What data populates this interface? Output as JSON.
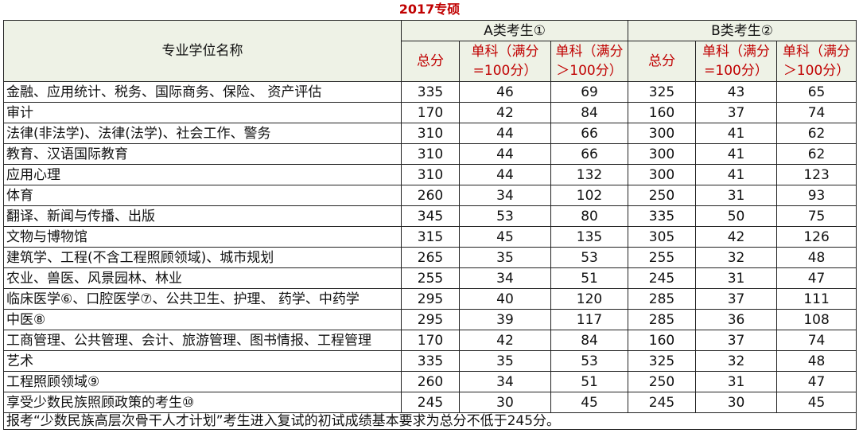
{
  "title": "2017专硕",
  "table": {
    "header": {
      "name": "专业学位名称",
      "group_a": "A类考生①",
      "group_b": "B类考生②",
      "sub": [
        "总分",
        "单科（满分=100分）",
        "单科（满分＞100分）",
        "总分",
        "单科（满分=100分）",
        "单科（满分＞100分）"
      ]
    },
    "rows": [
      [
        "金融、应用统计、税务、国际商务、保险、 资产评估",
        335,
        46,
        69,
        325,
        43,
        65
      ],
      [
        "审计",
        170,
        42,
        84,
        160,
        37,
        74
      ],
      [
        "法律(非法学)、法律(法学)、社会工作、警务",
        310,
        44,
        66,
        300,
        41,
        62
      ],
      [
        "教育、汉语国际教育",
        310,
        44,
        66,
        300,
        41,
        62
      ],
      [
        "应用心理",
        310,
        44,
        132,
        300,
        41,
        123
      ],
      [
        "体育",
        260,
        34,
        102,
        250,
        31,
        93
      ],
      [
        "翻译、新闻与传播、出版",
        345,
        53,
        80,
        335,
        50,
        75
      ],
      [
        "文物与博物馆",
        315,
        45,
        135,
        305,
        42,
        126
      ],
      [
        "建筑学、工程(不含工程照顾领域)、城市规划",
        265,
        35,
        53,
        255,
        32,
        48
      ],
      [
        "农业、兽医、风景园林、林业",
        255,
        34,
        51,
        245,
        31,
        47
      ],
      [
        "临床医学⑥、口腔医学⑦、公共卫生、护理、 药学、中药学",
        295,
        40,
        120,
        285,
        37,
        111
      ],
      [
        "中医⑧",
        295,
        39,
        117,
        285,
        36,
        108
      ],
      [
        "工商管理、公共管理、会计、旅游管理、图书情报、工程管理",
        170,
        42,
        84,
        160,
        37,
        74
      ],
      [
        "艺术",
        335,
        35,
        53,
        325,
        32,
        48
      ],
      [
        "工程照顾领域⑨",
        260,
        34,
        51,
        250,
        31,
        47
      ],
      [
        "享受少数民族照顾政策的考生⑩",
        245,
        30,
        45,
        245,
        30,
        45
      ]
    ],
    "note": "报考“少数民族高层次骨干人才计划”考生进入复试的初试成绩基本要求为总分不低于245分。"
  }
}
